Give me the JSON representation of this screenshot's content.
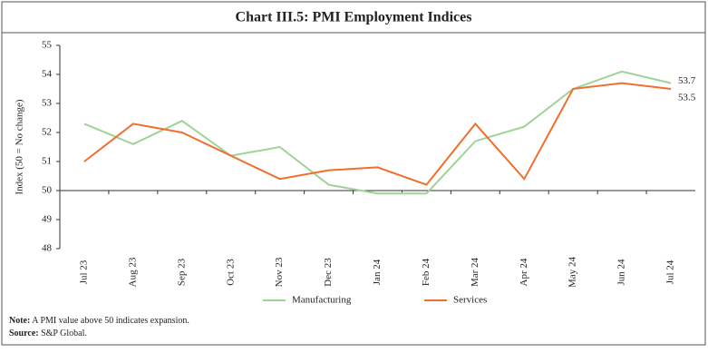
{
  "chart_data": {
    "type": "line",
    "title": "Chart III.5: PMI Employment Indices",
    "y_label": "Index (50 = No change)",
    "categories": [
      "Jul 23",
      "Aug 23",
      "Sep 23",
      "Oct 23",
      "Nov 23",
      "Dec 23",
      "Jan 24",
      "Feb 24",
      "Mar 24",
      "Apr 24",
      "May 24",
      "Jun 24",
      "Jul 24"
    ],
    "series": [
      {
        "name": "Manufacturing",
        "color": "#9fd396",
        "label_color": "#5aa74e",
        "values": [
          52.3,
          51.6,
          52.4,
          51.2,
          51.5,
          50.2,
          49.9,
          49.9,
          51.7,
          52.2,
          53.5,
          54.1,
          53.7
        ]
      },
      {
        "name": "Services",
        "color": "#ef6f2e",
        "label_color": "#ef6f2e",
        "values": [
          51.0,
          52.3,
          52.0,
          51.2,
          50.4,
          50.7,
          50.8,
          50.2,
          52.3,
          50.4,
          53.5,
          53.7,
          53.5
        ]
      }
    ],
    "ylim": [
      48,
      55
    ],
    "yticks": [
      48,
      49,
      50,
      51,
      52,
      53,
      54,
      55
    ],
    "x_axis_crosses": 50,
    "grid": false,
    "legend": "bottom",
    "note_label": "Note:",
    "note": "A PMI value above 50 indicates expansion.",
    "source_label": "Source:",
    "source": "S&P Global."
  }
}
